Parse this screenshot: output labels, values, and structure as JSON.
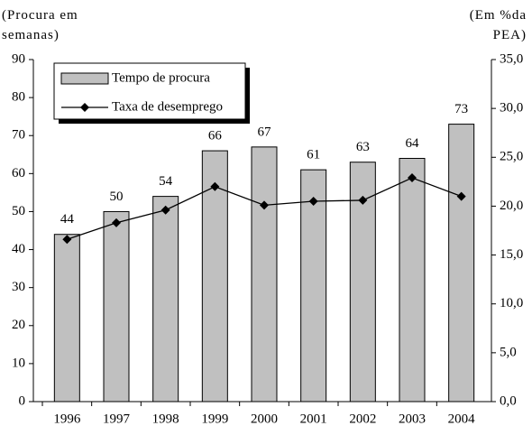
{
  "chart_data": {
    "type": "bar_line",
    "y_label": "(Procura em semanas)",
    "y2_label": "(Em %da PEA)",
    "categories": [
      "1996",
      "1997",
      "1998",
      "1999",
      "2000",
      "2001",
      "2002",
      "2003",
      "2004"
    ],
    "series": [
      {
        "name": "Tempo de procura",
        "type": "bar",
        "color": "#c0c0c0",
        "values": [
          44,
          50,
          54,
          66,
          67,
          61,
          63,
          64,
          73
        ]
      },
      {
        "name": "Taxa de desemprego",
        "type": "line",
        "axis": "y2",
        "color": "#000000",
        "values": [
          16.6,
          18.3,
          19.6,
          22.0,
          20.1,
          20.5,
          20.6,
          22.9,
          21.0
        ]
      }
    ],
    "ylim": [
      0,
      90
    ],
    "yticks": [
      0,
      10,
      20,
      30,
      40,
      50,
      60,
      70,
      80,
      90
    ],
    "y2lim": [
      0,
      35
    ],
    "y2ticks": [
      {
        "value": 0,
        "label": "0,0"
      },
      {
        "value": 5,
        "label": "5,0"
      },
      {
        "value": 10,
        "label": "10,0"
      },
      {
        "value": 15,
        "label": "15,0"
      },
      {
        "value": 20,
        "label": "20,0"
      },
      {
        "value": 25,
        "label": "25,0"
      },
      {
        "value": 30,
        "label": "30,0"
      },
      {
        "value": 35,
        "label": "35,0"
      }
    ]
  }
}
